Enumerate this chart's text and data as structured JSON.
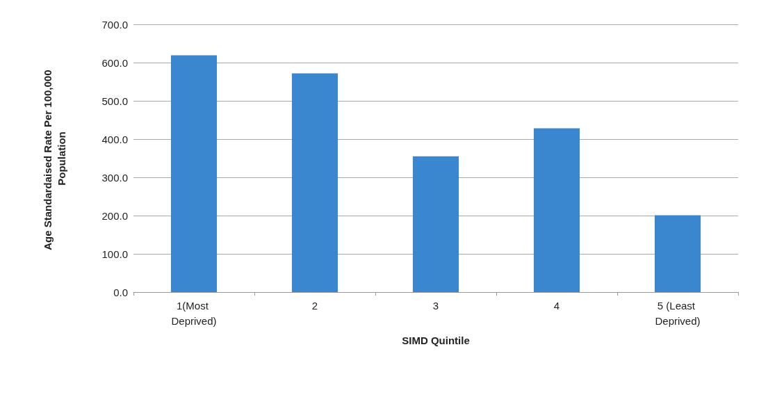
{
  "chart_data": {
    "type": "bar",
    "xlabel": "SIMD Quintile",
    "ylabel": "Age Standardaised Rate Per 100,000 Population",
    "categories": [
      "1(Most Deprived)",
      "2",
      "3",
      "4",
      "5 (Least Deprived)"
    ],
    "values": [
      619,
      572,
      355,
      428,
      201
    ],
    "color": "#3a87d0",
    "ylim": [
      0,
      700
    ],
    "yticks": [
      {
        "value": 0,
        "label": "0.0"
      },
      {
        "value": 100,
        "label": "100.0"
      },
      {
        "value": 200,
        "label": "200.0"
      },
      {
        "value": 300,
        "label": "300.0"
      },
      {
        "value": 400,
        "label": "400.0"
      },
      {
        "value": 500,
        "label": "500.0"
      },
      {
        "value": 600,
        "label": "600.0"
      },
      {
        "value": 700,
        "label": "700.0"
      }
    ],
    "grid": "y"
  }
}
